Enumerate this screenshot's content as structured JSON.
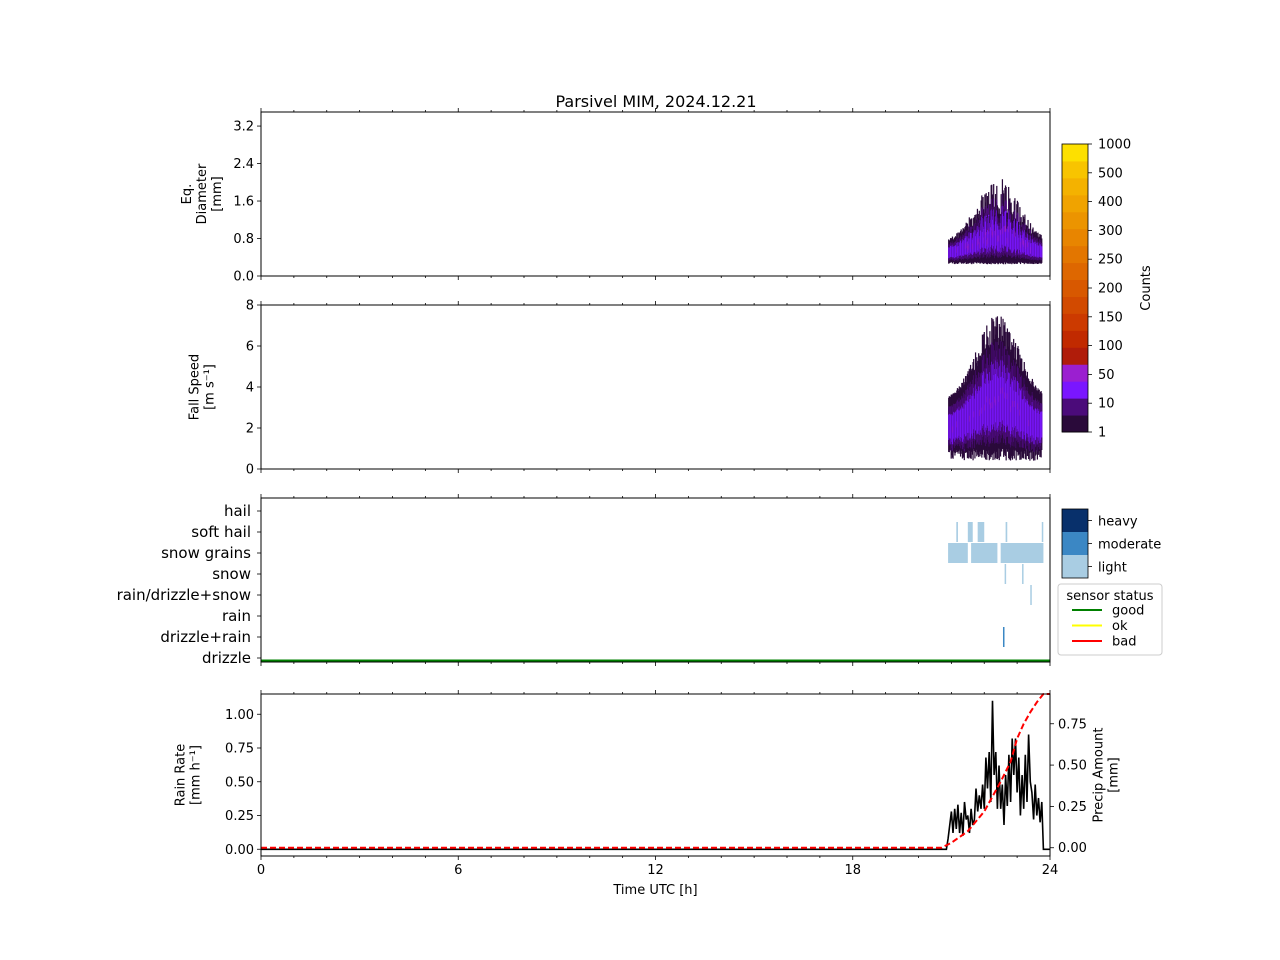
{
  "title": "Parsivel MIM, 2024.12.21",
  "colors": {
    "counts_scale": [
      "#2a0a3a",
      "#4b0b7a",
      "#7a16ff",
      "#9b1fd0",
      "#b01c0a",
      "#c12a00",
      "#cc3a00",
      "#d24a00",
      "#d85800",
      "#de6700",
      "#e37600",
      "#e88500",
      "#ec9400",
      "#f0a300",
      "#f4b200",
      "#f8c400",
      "#fde000",
      "#fff200"
    ],
    "intensity": {
      "heavy": "#08306b",
      "moderate": "#3b87c4",
      "light": "#a9cde3"
    },
    "status": {
      "good": "#008000",
      "ok": "#ffff00",
      "bad": "#ff0000"
    },
    "rain_rate_line": "#000000",
    "precip_amount_line": "#ff0000"
  },
  "chart_data": [
    {
      "type": "heatmap",
      "panel": "diameter",
      "ylabel_lines": [
        "Eq.",
        "Diameter",
        "[mm]"
      ],
      "ylim": [
        0,
        3.5
      ],
      "yticks": [
        "0.0",
        "0.8",
        "1.6",
        "2.4",
        "3.2"
      ],
      "ytick_values": [
        0,
        0.8,
        1.6,
        2.4,
        3.2
      ],
      "xlim": [
        0,
        24
      ],
      "data_time_range": [
        20.9,
        23.75
      ],
      "typical_range": [
        0.3,
        1.3
      ],
      "max_value": 2.3,
      "colorbar_label": "Counts"
    },
    {
      "type": "heatmap",
      "panel": "fall_speed",
      "ylabel_lines": [
        "Fall Speed",
        "[m s⁻¹]"
      ],
      "ylim": [
        0,
        8
      ],
      "yticks": [
        "0",
        "2",
        "4",
        "6",
        "8"
      ],
      "ytick_values": [
        0,
        2,
        4,
        6,
        8
      ],
      "xlim": [
        0,
        24
      ],
      "data_time_range": [
        20.9,
        23.75
      ],
      "typical_range": [
        1.0,
        6.0
      ],
      "max_value": 8.0
    },
    {
      "type": "heatmap",
      "panel": "precip_type",
      "categories": [
        "hail",
        "soft hail",
        "snow grains",
        "snow",
        "rain/drizzle+snow",
        "rain",
        "drizzle+rain",
        "drizzle"
      ],
      "xlim": [
        0,
        24
      ],
      "legend_intensity": [
        "heavy",
        "moderate",
        "light"
      ],
      "legend_status_title": "sensor status",
      "legend_status": [
        "good",
        "ok",
        "bad"
      ],
      "sensor_status_line": "good",
      "events": [
        {
          "category": "rain",
          "start": 20.9,
          "end": 21.5,
          "intensity": "light"
        },
        {
          "category": "rain",
          "start": 21.6,
          "end": 22.4,
          "intensity": "light"
        },
        {
          "category": "rain",
          "start": 22.5,
          "end": 23.8,
          "intensity": "light"
        },
        {
          "category": "drizzle+rain",
          "start": 21.15,
          "end": 21.2,
          "intensity": "light"
        },
        {
          "category": "drizzle+rain",
          "start": 21.5,
          "end": 21.65,
          "intensity": "light"
        },
        {
          "category": "drizzle+rain",
          "start": 21.8,
          "end": 22.0,
          "intensity": "light"
        },
        {
          "category": "drizzle+rain",
          "start": 22.65,
          "end": 22.7,
          "intensity": "light"
        },
        {
          "category": "drizzle+rain",
          "start": 23.75,
          "end": 23.78,
          "intensity": "light"
        },
        {
          "category": "snow",
          "start": 23.4,
          "end": 23.44,
          "intensity": "light"
        },
        {
          "category": "rain/drizzle+snow",
          "start": 22.62,
          "end": 22.65,
          "intensity": "light"
        },
        {
          "category": "rain/drizzle+snow",
          "start": 23.15,
          "end": 23.18,
          "intensity": "light"
        },
        {
          "category": "soft hail",
          "start": 22.57,
          "end": 22.61,
          "intensity": "moderate"
        }
      ]
    },
    {
      "type": "line",
      "panel": "rain_rate",
      "xlabel": "Time UTC [h]",
      "xlim": [
        0,
        24
      ],
      "xticks": [
        "0",
        "6",
        "12",
        "18",
        "24"
      ],
      "xtick_values": [
        0,
        6,
        12,
        18,
        24
      ],
      "ylabel_lines": [
        "Rain Rate",
        "[mm h⁻¹]"
      ],
      "ylim": [
        -0.05,
        1.15
      ],
      "yticks": [
        "0.00",
        "0.25",
        "0.50",
        "0.75",
        "1.00"
      ],
      "ytick_values": [
        0,
        0.25,
        0.5,
        0.75,
        1.0
      ],
      "y2label_lines": [
        "Precip Amount",
        "[mm]"
      ],
      "y2lim": [
        -0.05,
        0.93
      ],
      "y2ticks": [
        "0.00",
        "0.25",
        "0.50",
        "0.75"
      ],
      "y2tick_values": [
        0,
        0.25,
        0.5,
        0.75
      ],
      "series": [
        {
          "axis": "left",
          "style": "solid",
          "x": [
            0,
            20.85,
            20.9,
            21.0,
            21.05,
            21.1,
            21.15,
            21.2,
            21.25,
            21.3,
            21.35,
            21.4,
            21.45,
            21.5,
            21.55,
            21.6,
            21.65,
            21.7,
            21.75,
            21.8,
            21.85,
            21.9,
            21.95,
            22.0,
            22.05,
            22.1,
            22.15,
            22.2,
            22.25,
            22.3,
            22.35,
            22.4,
            22.45,
            22.5,
            22.55,
            22.6,
            22.65,
            22.7,
            22.75,
            22.8,
            22.85,
            22.9,
            22.95,
            23.0,
            23.05,
            23.1,
            23.15,
            23.2,
            23.25,
            23.3,
            23.35,
            23.4,
            23.45,
            23.5,
            23.55,
            23.6,
            23.65,
            23.7,
            23.75,
            23.8,
            24.0
          ],
          "y": [
            0,
            0,
            0.08,
            0.28,
            0.12,
            0.3,
            0.15,
            0.33,
            0.12,
            0.27,
            0.1,
            0.35,
            0.22,
            0.25,
            0.12,
            0.3,
            0.18,
            0.22,
            0.45,
            0.28,
            0.4,
            0.3,
            0.48,
            0.3,
            0.68,
            0.45,
            0.72,
            0.35,
            1.1,
            0.55,
            0.72,
            0.3,
            0.62,
            0.3,
            0.48,
            0.18,
            0.55,
            0.32,
            0.7,
            0.35,
            0.82,
            0.55,
            0.82,
            0.42,
            0.68,
            0.25,
            0.55,
            0.3,
            0.7,
            0.35,
            0.85,
            0.5,
            0.42,
            0.22,
            0.48,
            0.25,
            0.38,
            0.2,
            0.35,
            0,
            0
          ]
        },
        {
          "axis": "right",
          "style": "dashed",
          "x": [
            0,
            20.7,
            21.0,
            21.5,
            22.0,
            22.5,
            22.8,
            23.0,
            23.2,
            23.4,
            23.6,
            23.8,
            24.0
          ],
          "y": [
            0,
            0,
            0.03,
            0.1,
            0.22,
            0.4,
            0.52,
            0.66,
            0.75,
            0.82,
            0.88,
            0.93,
            0.93
          ]
        }
      ]
    }
  ],
  "colorbar": {
    "label": "Counts",
    "tick_labels": [
      "1",
      "10",
      "50",
      "100",
      "150",
      "200",
      "250",
      "300",
      "400",
      "500",
      "1000"
    ]
  },
  "legend": {
    "intensity_labels": {
      "heavy": "heavy",
      "moderate": "moderate",
      "light": "light"
    },
    "status_title": "sensor status",
    "status_labels": {
      "good": "good",
      "ok": "ok",
      "bad": "bad"
    }
  }
}
